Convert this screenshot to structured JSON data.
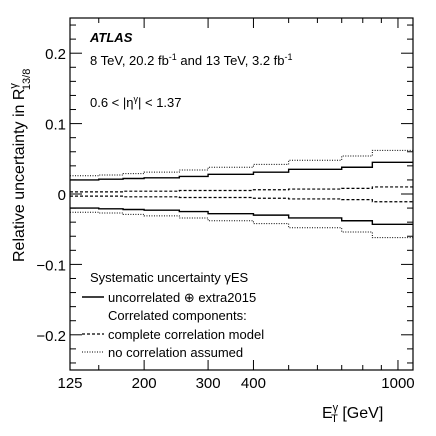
{
  "chart_data": {
    "type": "line",
    "experiment": "ATLAS",
    "energy_line": {
      "part1": "8 TeV, 20.2 fb",
      "sup1": "-1",
      "part2": " and 13 TeV, 3.2 fb",
      "sup2": "-1"
    },
    "eta_label": {
      "pre": "0.6 < |η",
      "sup": "γ",
      "post": "| < 1.37"
    },
    "ylabel": {
      "main": "Relative uncertainty in R",
      "sup": "γ",
      "sub": "13/8"
    },
    "xlabel": {
      "main": "E",
      "sup": "γ",
      "sub": "T",
      "unit": " [GeV]"
    },
    "x_scale": "log",
    "xlim": [
      125,
      1100
    ],
    "ylim": [
      -0.25,
      0.25
    ],
    "x_ticks": [
      {
        "value": 125,
        "label": "125"
      },
      {
        "value": 200,
        "label": "200"
      },
      {
        "value": 300,
        "label": "300"
      },
      {
        "value": 400,
        "label": "400"
      },
      {
        "value": 1000,
        "label": "1000"
      }
    ],
    "y_ticks": [
      {
        "value": 0.2,
        "label": "0.2"
      },
      {
        "value": 0.1,
        "label": "0.1"
      },
      {
        "value": 0,
        "label": "0"
      },
      {
        "value": -0.1,
        "label": "−0.1"
      },
      {
        "value": -0.2,
        "label": "−0.2"
      }
    ],
    "legend": {
      "header": "Systematic uncertainty γES",
      "subheader": "Correlated components:",
      "entries": [
        {
          "label": "uncorrelated ⊕ extra2015",
          "style": "solid"
        },
        {
          "label": "complete correlation model",
          "style": "dashed"
        },
        {
          "label": "no correlation assumed",
          "style": "dotted"
        }
      ]
    },
    "bin_edges": [
      125,
      150,
      175,
      200,
      250,
      300,
      400,
      500,
      700,
      850,
      1100
    ],
    "series": [
      {
        "label": "uncorrelated ⊕ extra2015",
        "style": "solid",
        "upper": [
          0.02,
          0.021,
          0.022,
          0.023,
          0.025,
          0.028,
          0.031,
          0.035,
          0.038,
          0.045
        ],
        "lower": [
          -0.02,
          -0.021,
          -0.022,
          -0.023,
          -0.025,
          -0.028,
          -0.03,
          -0.034,
          -0.038,
          -0.043
        ]
      },
      {
        "label": "complete correlation model",
        "style": "dashed",
        "upper": [
          0.003,
          0.003,
          0.004,
          0.004,
          0.005,
          0.005,
          0.006,
          0.007,
          0.008,
          0.01
        ],
        "lower": [
          -0.003,
          -0.003,
          -0.004,
          -0.004,
          -0.005,
          -0.005,
          -0.006,
          -0.007,
          -0.008,
          -0.011
        ]
      },
      {
        "label": "no correlation assumed",
        "style": "dotted",
        "upper": [
          0.026,
          0.027,
          0.029,
          0.031,
          0.034,
          0.038,
          0.042,
          0.048,
          0.054,
          0.062
        ],
        "lower": [
          -0.026,
          -0.027,
          -0.029,
          -0.031,
          -0.034,
          -0.038,
          -0.042,
          -0.048,
          -0.054,
          -0.062
        ]
      }
    ],
    "grid": false,
    "legend_position": "bottom-left"
  }
}
